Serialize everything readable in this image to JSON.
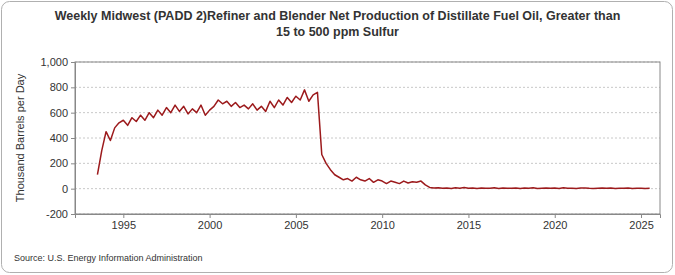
{
  "chart_data": {
    "type": "line",
    "title": "Weekly Midwest (PADD 2)Refiner and Blender Net Production of Distillate Fuel Oil, Greater than\n15 to 500 ppm Sulfur",
    "y_label": "Thousand Barrels per Day",
    "source": "Source: U.S. Energy Information Administration",
    "color": "#9c1a1c",
    "grid": true,
    "xlim": [
      1992.2,
      2026.1
    ],
    "xticks": [
      1995,
      2000,
      2005,
      2010,
      2015,
      2020,
      2025
    ],
    "ylim": [
      -200,
      1000
    ],
    "yticks": [
      -200,
      0,
      200,
      400,
      600,
      800,
      {
        "value": 1000,
        "label": "1,000"
      }
    ],
    "x": [
      1993.5,
      1993.75,
      1994,
      1994.25,
      1994.5,
      1994.75,
      1995,
      1995.25,
      1995.5,
      1995.75,
      1996,
      1996.25,
      1996.5,
      1996.75,
      1997,
      1997.25,
      1997.5,
      1997.75,
      1998,
      1998.25,
      1998.5,
      1998.75,
      1999,
      1999.25,
      1999.5,
      1999.75,
      2000,
      2000.25,
      2000.5,
      2000.75,
      2001,
      2001.25,
      2001.5,
      2001.75,
      2002,
      2002.25,
      2002.5,
      2002.75,
      2003,
      2003.25,
      2003.5,
      2003.75,
      2004,
      2004.25,
      2004.5,
      2004.75,
      2005,
      2005.25,
      2005.5,
      2005.75,
      2006,
      2006.25,
      2006.5,
      2006.75,
      2007,
      2007.25,
      2007.5,
      2007.75,
      2008,
      2008.25,
      2008.5,
      2008.75,
      2009,
      2009.25,
      2009.5,
      2009.75,
      2010,
      2010.25,
      2010.5,
      2010.75,
      2011,
      2011.25,
      2011.5,
      2011.75,
      2012,
      2012.25,
      2012.5,
      2012.75,
      2013,
      2013.25,
      2013.5,
      2013.75,
      2014,
      2014.25,
      2014.5,
      2014.75,
      2015,
      2015.25,
      2015.5,
      2015.75,
      2016,
      2016.25,
      2016.5,
      2016.75,
      2017,
      2017.25,
      2017.5,
      2017.75,
      2018,
      2018.25,
      2018.5,
      2018.75,
      2019,
      2019.25,
      2019.5,
      2019.75,
      2020,
      2020.25,
      2020.5,
      2020.75,
      2021,
      2021.25,
      2021.5,
      2021.75,
      2022,
      2022.25,
      2022.5,
      2022.75,
      2023,
      2023.25,
      2023.5,
      2023.75,
      2024,
      2024.25,
      2024.5,
      2024.75,
      2025,
      2025.25,
      2025.5
    ],
    "values": [
      110,
      300,
      450,
      380,
      480,
      520,
      540,
      500,
      560,
      530,
      580,
      540,
      600,
      560,
      620,
      580,
      640,
      600,
      660,
      610,
      650,
      590,
      630,
      600,
      660,
      580,
      620,
      650,
      700,
      670,
      690,
      650,
      680,
      640,
      660,
      630,
      670,
      620,
      650,
      610,
      690,
      640,
      700,
      660,
      720,
      680,
      730,
      700,
      780,
      690,
      740,
      760,
      270,
      200,
      150,
      110,
      90,
      70,
      80,
      60,
      90,
      70,
      60,
      80,
      50,
      70,
      60,
      40,
      60,
      50,
      40,
      60,
      45,
      55,
      50,
      60,
      30,
      10,
      5,
      8,
      3,
      6,
      2,
      7,
      4,
      9,
      3,
      5,
      2,
      6,
      4,
      3,
      7,
      2,
      5,
      3,
      4,
      6,
      2,
      5,
      3,
      8,
      2,
      4,
      6,
      3,
      5,
      2,
      7,
      3,
      4,
      2,
      5,
      6,
      3,
      2,
      4,
      5,
      3,
      6,
      2,
      4,
      3,
      5,
      2,
      4,
      3,
      2,
      4
    ]
  }
}
